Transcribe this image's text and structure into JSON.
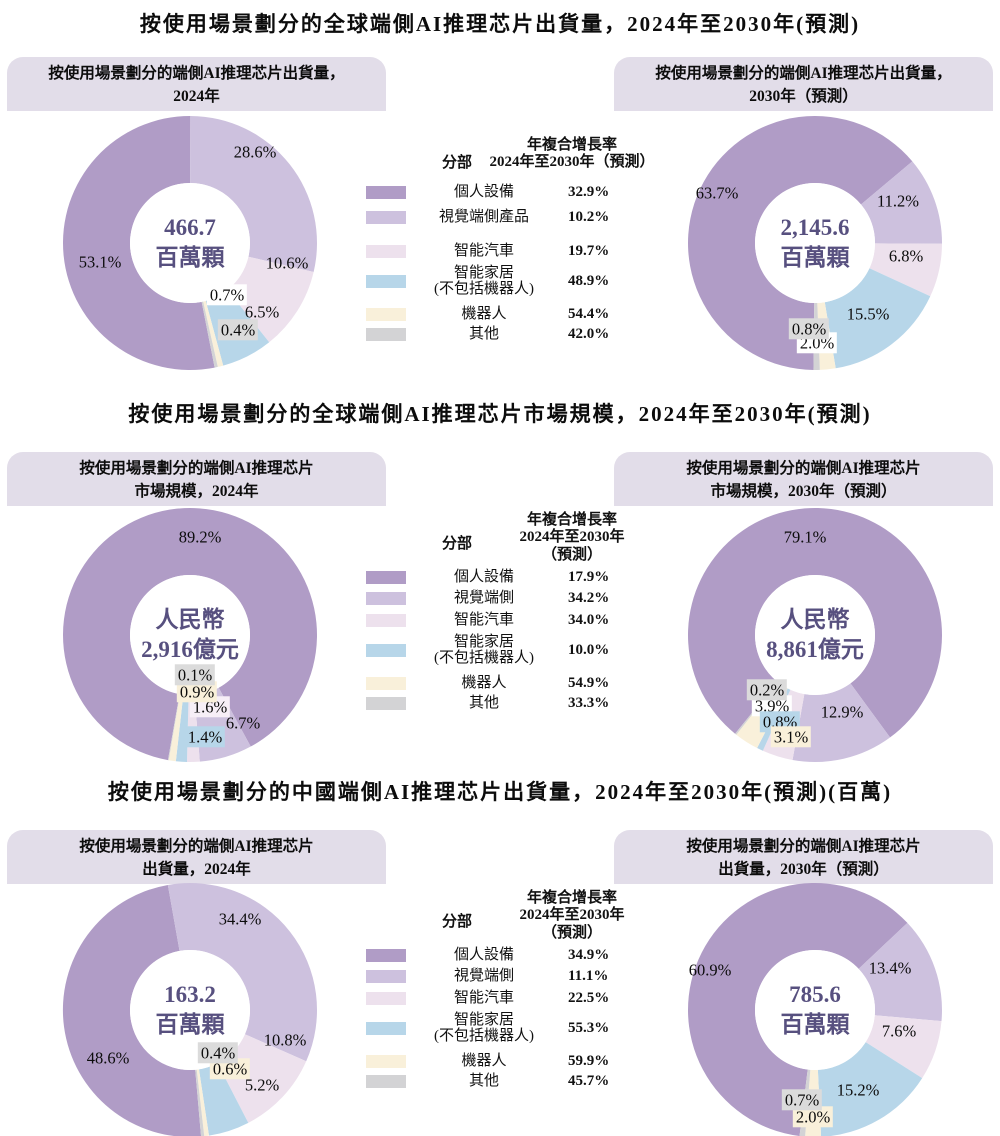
{
  "colors": {
    "segments": [
      "#b09cc6",
      "#cdc1de",
      "#ede1ed",
      "#b7d6e9",
      "#f9f0da",
      "#d3d3d5"
    ],
    "header_bg": "#e2dde9",
    "center_text": "#57507f",
    "small_label_gray_bg": "#dbdbdb",
    "donut_hole": "#ffffff"
  },
  "rows": [
    {
      "title": "按使用場景劃分的全球端側AI推理芯片出貨量，2024年至2030年(預測)",
      "legend": {
        "segment_header": "分部",
        "cagr_header": "年複合增長率\n2024年至2030年（預測）",
        "items": [
          {
            "label": "個人設備",
            "cagr": "32.9%"
          },
          {
            "label": "視覺端側產品",
            "cagr": "10.2%"
          },
          {
            "label": "智能汽車",
            "cagr": "19.7%"
          },
          {
            "label": "智能家居\n(不包括機器人)",
            "cagr": "48.9%"
          },
          {
            "label": "機器人",
            "cagr": "54.4%"
          },
          {
            "label": "其他",
            "cagr": "42.0%"
          }
        ]
      },
      "left": {
        "header": "按使用場景劃分的端側AI推理芯片出貨量，\n2024年",
        "center": "466.7\n百萬顆",
        "values": [
          53.1,
          28.6,
          10.6,
          6.5,
          0.7,
          0.4
        ]
      },
      "right": {
        "header": "按使用場景劃分的端側AI推理芯片出貨量，\n2030年（預測）",
        "center": "2,145.6\n百萬顆",
        "values": [
          63.7,
          11.2,
          6.8,
          15.5,
          2.0,
          0.8
        ]
      }
    },
    {
      "title": "按使用場景劃分的全球端側AI推理芯片市場規模，2024年至2030年(預測)",
      "legend": {
        "segment_header": "分部",
        "cagr_header": "年複合增長率\n2024年至2030年\n（預測）",
        "items": [
          {
            "label": "個人設備",
            "cagr": "17.9%"
          },
          {
            "label": "視覺端側",
            "cagr": "34.2%"
          },
          {
            "label": "智能汽車",
            "cagr": "34.0%"
          },
          {
            "label": "智能家居\n(不包括機器人)",
            "cagr": "10.0%"
          },
          {
            "label": "機器人",
            "cagr": "54.9%"
          },
          {
            "label": "其他",
            "cagr": "33.3%"
          }
        ]
      },
      "left": {
        "header": "按使用場景劃分的端側AI推理芯片\n市場規模，2024年",
        "center": "人民幣\n2,916億元",
        "values": [
          89.2,
          6.7,
          1.6,
          1.4,
          0.9,
          0.1
        ]
      },
      "right": {
        "header": "按使用場景劃分的端側AI推理芯片\n市場規模，2030年（預測）",
        "center": "人民幣\n8,861億元",
        "values": [
          79.1,
          12.9,
          3.9,
          0.8,
          3.1,
          0.2
        ]
      }
    },
    {
      "title": "按使用場景劃分的中國端側AI推理芯片出貨量，2024年至2030年(預測)(百萬)",
      "legend": {
        "segment_header": "分部",
        "cagr_header": "年複合增長率\n2024年至2030年\n（預測）",
        "items": [
          {
            "label": "個人設備",
            "cagr": "34.9%"
          },
          {
            "label": "視覺端側",
            "cagr": "11.1%"
          },
          {
            "label": "智能汽車",
            "cagr": "22.5%"
          },
          {
            "label": "智能家居\n(不包括機器人)",
            "cagr": "55.3%"
          },
          {
            "label": "機器人",
            "cagr": "59.9%"
          },
          {
            "label": "其他",
            "cagr": "45.7%"
          }
        ]
      },
      "left": {
        "header": "按使用場景劃分的端側AI推理芯片\n出貨量，2024年",
        "center": "163.2\n百萬顆",
        "values": [
          48.6,
          34.4,
          10.8,
          5.2,
          0.6,
          0.4
        ]
      },
      "right": {
        "header": "按使用場景劃分的端側AI推理芯片\n出貨量，2030年（預測）",
        "center": "785.6\n百萬顆",
        "values": [
          60.9,
          13.4,
          7.6,
          15.2,
          2.0,
          0.7
        ]
      }
    }
  ],
  "chart_data": [
    {
      "type": "pie",
      "title": "按使用場景劃分的端側AI推理芯片出貨量，2024年",
      "center_label": "466.7 百萬顆",
      "labels": [
        "個人設備",
        "視覺端側產品",
        "智能汽車",
        "智能家居(不包括機器人)",
        "機器人",
        "其他"
      ],
      "values": [
        53.1,
        28.6,
        10.6,
        6.5,
        0.7,
        0.4
      ],
      "unit": "%"
    },
    {
      "type": "pie",
      "title": "按使用場景劃分的端側AI推理芯片出貨量，2030年（預測）",
      "center_label": "2,145.6 百萬顆",
      "labels": [
        "個人設備",
        "視覺端側產品",
        "智能汽車",
        "智能家居(不包括機器人)",
        "機器人",
        "其他"
      ],
      "values": [
        63.7,
        11.2,
        6.8,
        15.5,
        2.0,
        0.8
      ],
      "unit": "%"
    },
    {
      "type": "pie",
      "title": "按使用場景劃分的端側AI推理芯片市場規模，2024年",
      "center_label": "人民幣 2,916億元",
      "labels": [
        "個人設備",
        "視覺端側",
        "智能汽車",
        "智能家居(不包括機器人)",
        "機器人",
        "其他"
      ],
      "values": [
        89.2,
        6.7,
        1.6,
        1.4,
        0.9,
        0.1
      ],
      "unit": "%"
    },
    {
      "type": "pie",
      "title": "按使用場景劃分的端側AI推理芯片市場規模，2030年（預測）",
      "center_label": "人民幣 8,861億元",
      "labels": [
        "個人設備",
        "視覺端側",
        "智能汽車",
        "智能家居(不包括機器人)",
        "機器人",
        "其他"
      ],
      "values": [
        79.1,
        12.9,
        3.9,
        0.8,
        3.1,
        0.2
      ],
      "unit": "%"
    },
    {
      "type": "pie",
      "title": "按使用場景劃分的端側AI推理芯片出貨量，2024年",
      "center_label": "163.2 百萬顆",
      "labels": [
        "個人設備",
        "視覺端側",
        "智能汽車",
        "智能家居(不包括機器人)",
        "機器人",
        "其他"
      ],
      "values": [
        48.6,
        34.4,
        10.8,
        5.2,
        0.6,
        0.4
      ],
      "unit": "%"
    },
    {
      "type": "pie",
      "title": "按使用場景劃分的端側AI推理芯片出貨量，2030年（預測）",
      "center_label": "785.6 百萬顆",
      "labels": [
        "個人設備",
        "視覺端側",
        "智能汽車",
        "智能家居(不包括機器人)",
        "機器人",
        "其他"
      ],
      "values": [
        60.9,
        13.4,
        7.6,
        15.2,
        2.0,
        0.7
      ],
      "unit": "%"
    },
    {
      "type": "table",
      "title": "年複合增長率 2024年至2030年（預測） — 全球出貨量",
      "rows": [
        [
          "個人設備",
          "32.9%"
        ],
        [
          "視覺端側產品",
          "10.2%"
        ],
        [
          "智能汽車",
          "19.7%"
        ],
        [
          "智能家居(不包括機器人)",
          "48.9%"
        ],
        [
          "機器人",
          "54.4%"
        ],
        [
          "其他",
          "42.0%"
        ]
      ]
    },
    {
      "type": "table",
      "title": "年複合增長率 2024年至2030年（預測） — 全球市場規模",
      "rows": [
        [
          "個人設備",
          "17.9%"
        ],
        [
          "視覺端側",
          "34.2%"
        ],
        [
          "智能汽車",
          "34.0%"
        ],
        [
          "智能家居(不包括機器人)",
          "10.0%"
        ],
        [
          "機器人",
          "54.9%"
        ],
        [
          "其他",
          "33.3%"
        ]
      ]
    },
    {
      "type": "table",
      "title": "年複合增長率 2024年至2030年（預測） — 中國出貨量",
      "rows": [
        [
          "個人設備",
          "34.9%"
        ],
        [
          "視覺端側",
          "11.1%"
        ],
        [
          "智能汽車",
          "22.5%"
        ],
        [
          "智能家居(不包括機器人)",
          "55.3%"
        ],
        [
          "機器人",
          "59.9%"
        ],
        [
          "其他",
          "45.7%"
        ]
      ]
    }
  ]
}
